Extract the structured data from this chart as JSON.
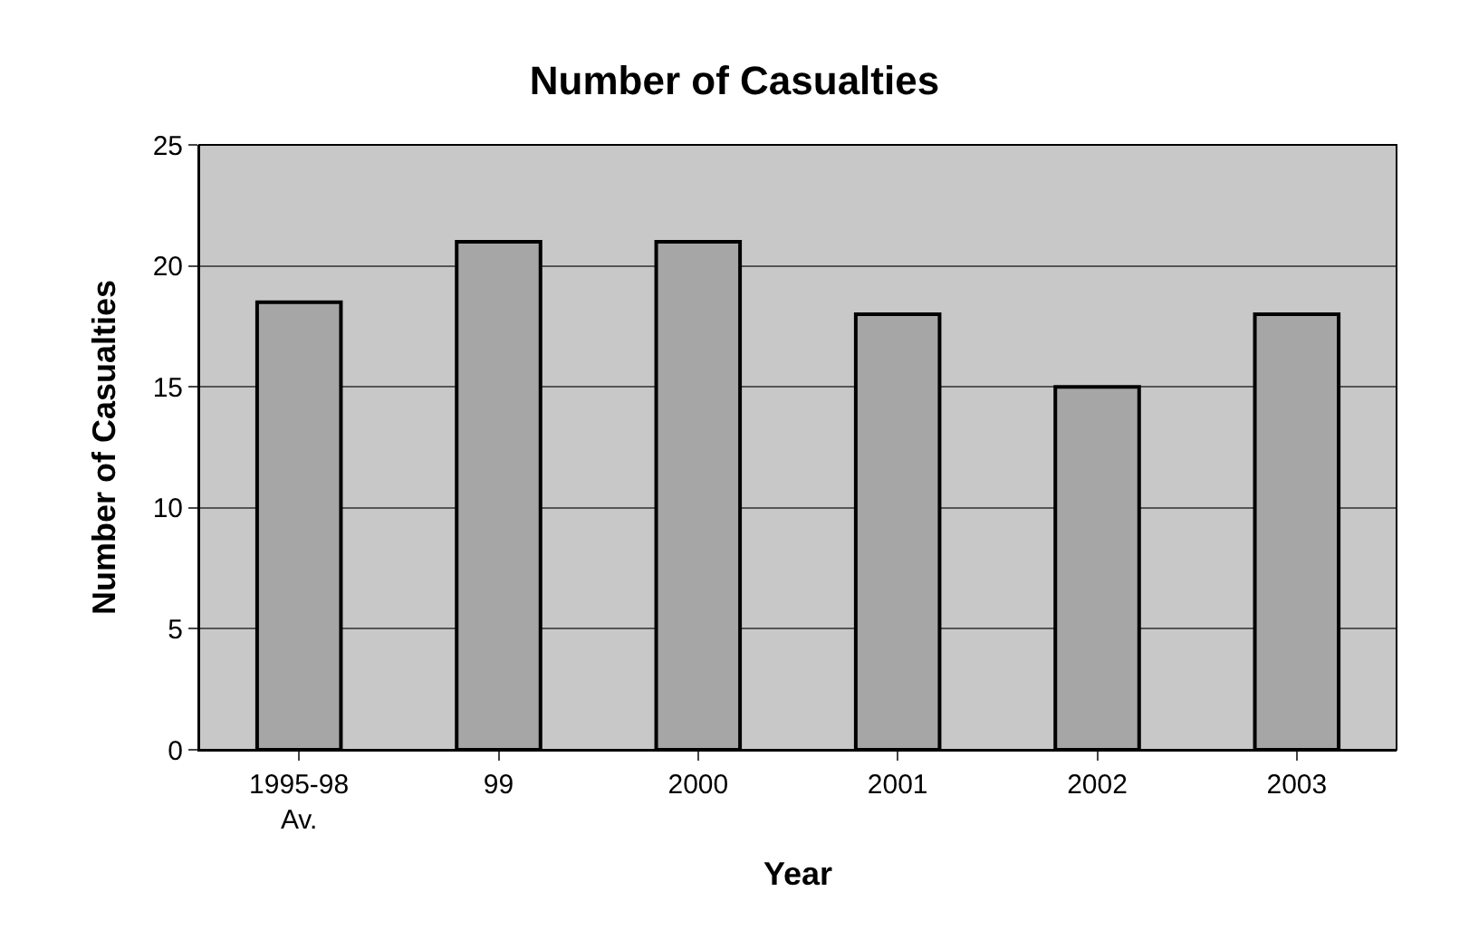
{
  "chart_data": {
    "type": "bar",
    "title": "Number of Casualties",
    "xlabel": "Year",
    "ylabel": "Number of Casualties",
    "categories": [
      "1995-98\nAv.",
      "99",
      "2000",
      "2001",
      "2002",
      "2003"
    ],
    "values": [
      18.5,
      21,
      21,
      18,
      15,
      18
    ],
    "color": "#a6a6a6",
    "ylim": [
      0,
      25
    ],
    "yticks": [
      0,
      5,
      10,
      15,
      20,
      25
    ],
    "grid": "y"
  }
}
